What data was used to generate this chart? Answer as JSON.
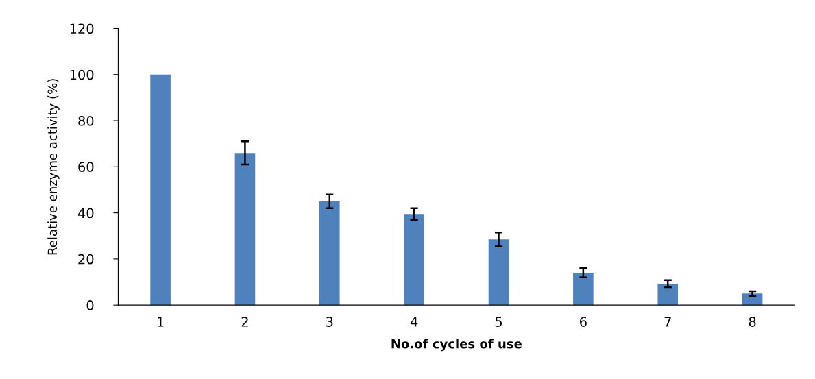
{
  "chart_data": {
    "type": "bar",
    "xlabel": "No.of cycles of use",
    "ylabel": "Relative enzyme activity (%)",
    "categories": [
      "1",
      "2",
      "3",
      "4",
      "5",
      "6",
      "7",
      "8"
    ],
    "values": [
      100,
      66,
      45,
      39.5,
      28.5,
      14,
      9.3,
      5
    ],
    "errors": [
      null,
      5,
      3,
      2.5,
      3,
      2,
      1.5,
      1
    ],
    "color": "#4f81bd",
    "ylim": [
      0,
      120
    ],
    "yticks": [
      0,
      20,
      40,
      60,
      80,
      100,
      120
    ],
    "grid": false,
    "legend": false
  }
}
